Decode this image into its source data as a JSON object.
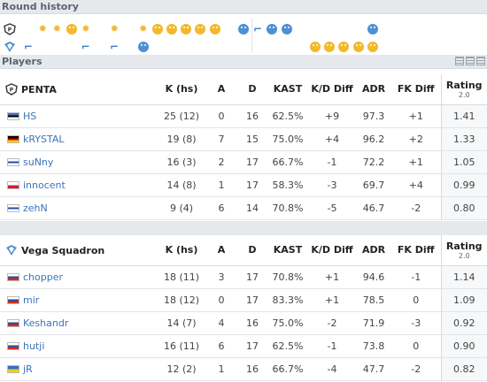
{
  "round_history": {
    "title": "Round history",
    "team1_icons": [
      "empty",
      "bomb",
      "bomb",
      "coin",
      "bomb",
      "empty",
      "bomb",
      "empty",
      "bomb",
      "coin",
      "coin",
      "coin",
      "coin",
      "coin",
      "empty",
      "skull-blue",
      "defuse",
      "skull-blue",
      "skull-blue",
      "empty",
      "empty",
      "empty",
      "empty",
      "empty",
      "skull-blue"
    ],
    "team2_icons": [
      "defuse",
      "empty",
      "empty",
      "empty",
      "defuse",
      "empty",
      "defuse",
      "empty",
      "skull-blue",
      "empty",
      "empty",
      "empty",
      "empty",
      "empty",
      "empty",
      "empty",
      "empty",
      "empty",
      "empty",
      "empty",
      "skull-gold",
      "skull-gold",
      "skull-gold",
      "skull-gold",
      "skull-gold"
    ]
  },
  "players_title": "Players",
  "columns": [
    "K (hs)",
    "A",
    "D",
    "KAST",
    "K/D Diff",
    "ADR",
    "FK Diff",
    "Rating"
  ],
  "rating_sub": "2.0",
  "teams": [
    {
      "name": "PENTA",
      "players": [
        {
          "name": "HS",
          "flag": "EE",
          "k": "25 (12)",
          "a": "0",
          "d": "16",
          "kast": "62.5%",
          "kd": "+9",
          "adr": "97.3",
          "fk": "+1",
          "rating": "1.41"
        },
        {
          "name": "kRYSTAL",
          "flag": "DE",
          "k": "19 (8)",
          "a": "7",
          "d": "15",
          "kast": "75.0%",
          "kd": "+4",
          "adr": "96.2",
          "fk": "+2",
          "rating": "1.33"
        },
        {
          "name": "suNny",
          "flag": "FI",
          "k": "16 (3)",
          "a": "2",
          "d": "17",
          "kast": "66.7%",
          "kd": "-1",
          "adr": "72.2",
          "fk": "+1",
          "rating": "1.05"
        },
        {
          "name": "innocent",
          "flag": "PL",
          "k": "14 (8)",
          "a": "1",
          "d": "17",
          "kast": "58.3%",
          "kd": "-3",
          "adr": "69.7",
          "fk": "+4",
          "rating": "0.99"
        },
        {
          "name": "zehN",
          "flag": "FI",
          "k": "9 (4)",
          "a": "6",
          "d": "14",
          "kast": "70.8%",
          "kd": "-5",
          "adr": "46.7",
          "fk": "-2",
          "rating": "0.80"
        }
      ]
    },
    {
      "name": "Vega Squadron",
      "players": [
        {
          "name": "chopper",
          "flag": "RU",
          "k": "18 (11)",
          "a": "3",
          "d": "17",
          "kast": "70.8%",
          "kd": "+1",
          "adr": "94.6",
          "fk": "-1",
          "rating": "1.14"
        },
        {
          "name": "mir",
          "flag": "RU",
          "k": "18 (12)",
          "a": "0",
          "d": "17",
          "kast": "83.3%",
          "kd": "+1",
          "adr": "78.5",
          "fk": "0",
          "rating": "1.09"
        },
        {
          "name": "Keshandr",
          "flag": "RU",
          "k": "14 (7)",
          "a": "4",
          "d": "16",
          "kast": "75.0%",
          "kd": "-2",
          "adr": "71.9",
          "fk": "-3",
          "rating": "0.92"
        },
        {
          "name": "hutji",
          "flag": "RU",
          "k": "16 (11)",
          "a": "6",
          "d": "17",
          "kast": "62.5%",
          "kd": "-1",
          "adr": "73.8",
          "fk": "0",
          "rating": "0.90"
        },
        {
          "name": "jR",
          "flag": "UA",
          "k": "12 (2)",
          "a": "1",
          "d": "16",
          "kast": "66.7%",
          "kd": "-4",
          "adr": "47.7",
          "fk": "-2",
          "rating": "0.82"
        }
      ]
    }
  ],
  "colors": {
    "positive": "#3a9a3a",
    "negative": "#d23b3b",
    "coin": "#f2b92c",
    "ct": "#4f8fd3",
    "link": "#3b74b8"
  }
}
